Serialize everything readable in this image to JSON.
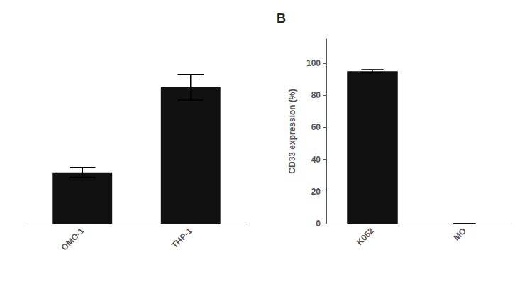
{
  "chart_data": [
    {
      "type": "bar",
      "categories": [
        "OMO-1",
        "THP-1"
      ],
      "values": [
        32,
        85
      ],
      "errors": [
        3,
        8
      ],
      "color": "#111111",
      "ylim": [
        0,
        115
      ],
      "tick_labels": "x",
      "grid": false
    },
    {
      "type": "bar",
      "title": "B",
      "categories": [
        "K052",
        "MO"
      ],
      "values": [
        95,
        0
      ],
      "errors": [
        1.0,
        0
      ],
      "color": "#111111",
      "ylabel": "CD33 expression (%)",
      "ylim": [
        0,
        115
      ],
      "yticks": [
        0,
        20,
        40,
        60,
        80,
        100
      ],
      "grid": false
    }
  ]
}
